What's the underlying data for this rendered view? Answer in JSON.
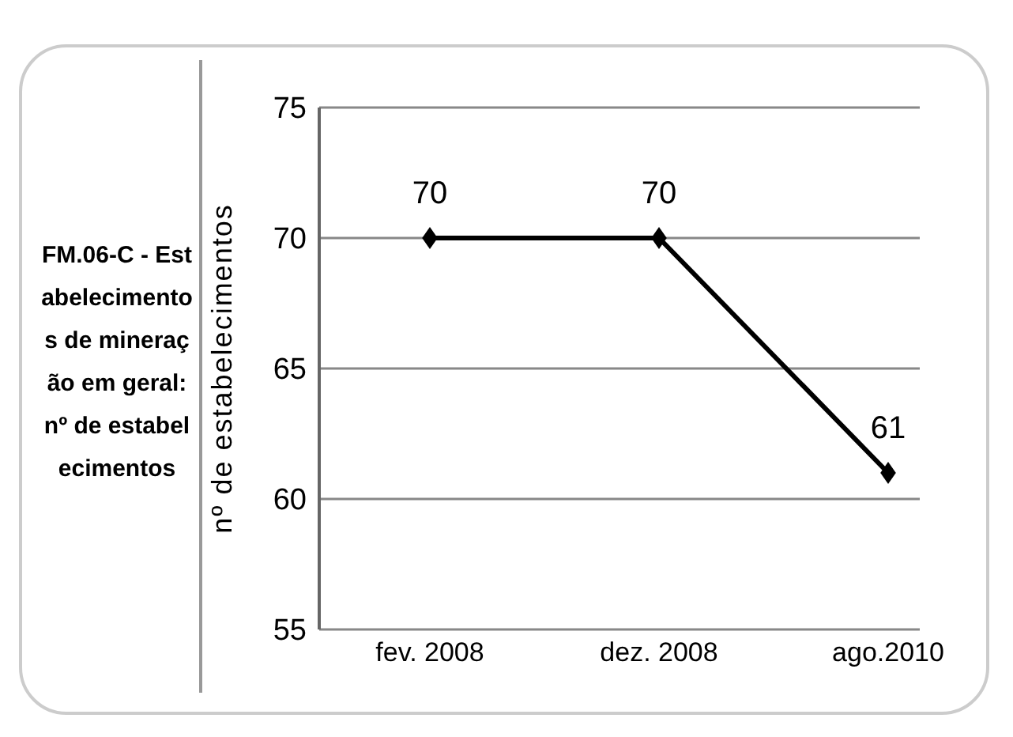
{
  "chart_data": {
    "type": "line",
    "title": "FM.06-C - Estabelecimentos de mineração em geral: nº de estabelecimentos",
    "ylabel": "nº de estabelecimentos",
    "categories": [
      "fev. 2008",
      "dez. 2008",
      "ago.2010"
    ],
    "series": [
      {
        "color": "#000000",
        "values": [
          70,
          70,
          61
        ]
      }
    ],
    "ylim": [
      55,
      75
    ],
    "yticks": [
      55,
      60,
      65,
      70,
      75
    ],
    "grid": "y",
    "marker": "diamond",
    "line_style": "solid",
    "data_labels": true,
    "legend": false
  }
}
